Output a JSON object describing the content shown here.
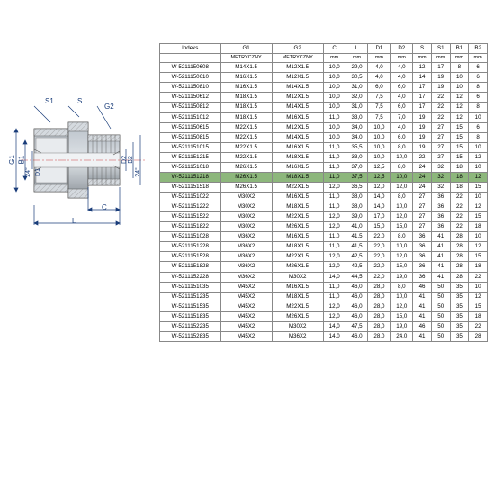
{
  "diagram": {
    "labels": {
      "S1": "S1",
      "S": "S",
      "G1": "G1",
      "G2": "G2",
      "B1": "B1",
      "B2": "B2",
      "D1": "D1",
      "D2": "D2",
      "C": "C",
      "L": "L",
      "a24_1": "24°",
      "a24_2": "24°"
    },
    "colors": {
      "line": "#1a3d7a",
      "steel1": "#9aa6b0",
      "steel2": "#c5ccd2",
      "steel3": "#7a8691",
      "dash": "#cc4444"
    }
  },
  "table": {
    "headers": [
      "Indeks",
      "G1",
      "G2",
      "C",
      "L",
      "D1",
      "D2",
      "S",
      "S1",
      "B1",
      "B2"
    ],
    "subheaders": [
      "",
      "METRYCZNY",
      "METRYCZNY",
      "mm",
      "mm",
      "mm",
      "mm",
      "mm",
      "mm",
      "mm",
      "mm"
    ],
    "highlight_row": 10,
    "rows": [
      [
        "W-5211150608",
        "M14X1.5",
        "M12X1.5",
        "10,0",
        "29,0",
        "4,0",
        "4,0",
        "12",
        "17",
        "8",
        "6"
      ],
      [
        "W-5211150610",
        "M16X1.5",
        "M12X1.5",
        "10,0",
        "30,5",
        "4,0",
        "4,0",
        "14",
        "19",
        "10",
        "6"
      ],
      [
        "W-5211150810",
        "M16X1.5",
        "M14X1.5",
        "10,0",
        "31,0",
        "6,0",
        "6,0",
        "17",
        "19",
        "10",
        "8"
      ],
      [
        "W-5211150612",
        "M18X1.5",
        "M12X1.5",
        "10,0",
        "32,0",
        "7,5",
        "4,0",
        "17",
        "22",
        "12",
        "6"
      ],
      [
        "W-5211150812",
        "M18X1.5",
        "M14X1.5",
        "10,0",
        "31,0",
        "7,5",
        "6,0",
        "17",
        "22",
        "12",
        "8"
      ],
      [
        "W-5211151012",
        "M18X1.5",
        "M16X1.5",
        "11,0",
        "33,0",
        "7,5",
        "7,0",
        "19",
        "22",
        "12",
        "10"
      ],
      [
        "W-5211150615",
        "M22X1.5",
        "M12X1.5",
        "10,0",
        "34,0",
        "10,0",
        "4,0",
        "19",
        "27",
        "15",
        "6"
      ],
      [
        "W-5211150815",
        "M22X1.5",
        "M14X1.5",
        "10,0",
        "34,0",
        "10,0",
        "6,0",
        "19",
        "27",
        "15",
        "8"
      ],
      [
        "W-5211151015",
        "M22X1.5",
        "M16X1.5",
        "11,0",
        "35,5",
        "10,0",
        "8,0",
        "19",
        "27",
        "15",
        "10"
      ],
      [
        "W-5211151215",
        "M22X1.5",
        "M18X1.5",
        "11,0",
        "33,0",
        "10,0",
        "10,0",
        "22",
        "27",
        "15",
        "12"
      ],
      [
        "W-5211151018",
        "M26X1.5",
        "M16X1.5",
        "11,0",
        "37,0",
        "12,5",
        "8,0",
        "24",
        "32",
        "18",
        "10"
      ],
      [
        "W-5211151218",
        "M26X1.5",
        "M18X1.5",
        "11,0",
        "37,5",
        "12,5",
        "10,0",
        "24",
        "32",
        "18",
        "12"
      ],
      [
        "W-5211151518",
        "M26X1.5",
        "M22X1.5",
        "12,0",
        "36,5",
        "12,0",
        "12,0",
        "24",
        "32",
        "18",
        "15"
      ],
      [
        "W-5211151022",
        "M30X2",
        "M16X1.5",
        "11,0",
        "38,0",
        "14,0",
        "8,0",
        "27",
        "36",
        "22",
        "10"
      ],
      [
        "W-5211151222",
        "M30X2",
        "M18X1.5",
        "11,0",
        "38,0",
        "14,0",
        "10,0",
        "27",
        "36",
        "22",
        "12"
      ],
      [
        "W-5211151522",
        "M30X2",
        "M22X1.5",
        "12,0",
        "39,0",
        "17,0",
        "12,0",
        "27",
        "36",
        "22",
        "15"
      ],
      [
        "W-5211151822",
        "M30X2",
        "M26X1.5",
        "12,0",
        "41,0",
        "15,0",
        "15,0",
        "27",
        "36",
        "22",
        "18"
      ],
      [
        "W-5211151028",
        "M36X2",
        "M16X1.5",
        "11,0",
        "41,5",
        "22,0",
        "8,0",
        "36",
        "41",
        "28",
        "10"
      ],
      [
        "W-5211151228",
        "M36X2",
        "M18X1.5",
        "11,0",
        "41,5",
        "22,0",
        "10,0",
        "36",
        "41",
        "28",
        "12"
      ],
      [
        "W-5211151528",
        "M36X2",
        "M22X1.5",
        "12,0",
        "42,5",
        "22,0",
        "12,0",
        "36",
        "41",
        "28",
        "15"
      ],
      [
        "W-5211151828",
        "M36X2",
        "M26X1.5",
        "12,0",
        "42,5",
        "22,0",
        "15,0",
        "36",
        "41",
        "28",
        "18"
      ],
      [
        "W-5211152228",
        "M36X2",
        "M30X2",
        "14,0",
        "44,5",
        "22,0",
        "19,0",
        "36",
        "41",
        "28",
        "22"
      ],
      [
        "W-5211151035",
        "M45X2",
        "M16X1.5",
        "11,0",
        "46,0",
        "28,0",
        "8,0",
        "46",
        "50",
        "35",
        "10"
      ],
      [
        "W-5211151235",
        "M45X2",
        "M18X1.5",
        "11,0",
        "46,0",
        "28,0",
        "10,0",
        "41",
        "50",
        "35",
        "12"
      ],
      [
        "W-5211151535",
        "M45X2",
        "M22X1.5",
        "12,0",
        "46,0",
        "28,0",
        "12,0",
        "41",
        "50",
        "35",
        "15"
      ],
      [
        "W-5211151835",
        "M45X2",
        "M26X1.5",
        "12,0",
        "46,0",
        "28,0",
        "15,0",
        "41",
        "50",
        "35",
        "18"
      ],
      [
        "W-5211152235",
        "M45X2",
        "M30X2",
        "14,0",
        "47,5",
        "28,0",
        "19,0",
        "46",
        "50",
        "35",
        "22"
      ],
      [
        "W-5211152835",
        "M45X2",
        "M36X2",
        "14,0",
        "46,0",
        "28,0",
        "24,0",
        "41",
        "50",
        "35",
        "28"
      ]
    ]
  }
}
